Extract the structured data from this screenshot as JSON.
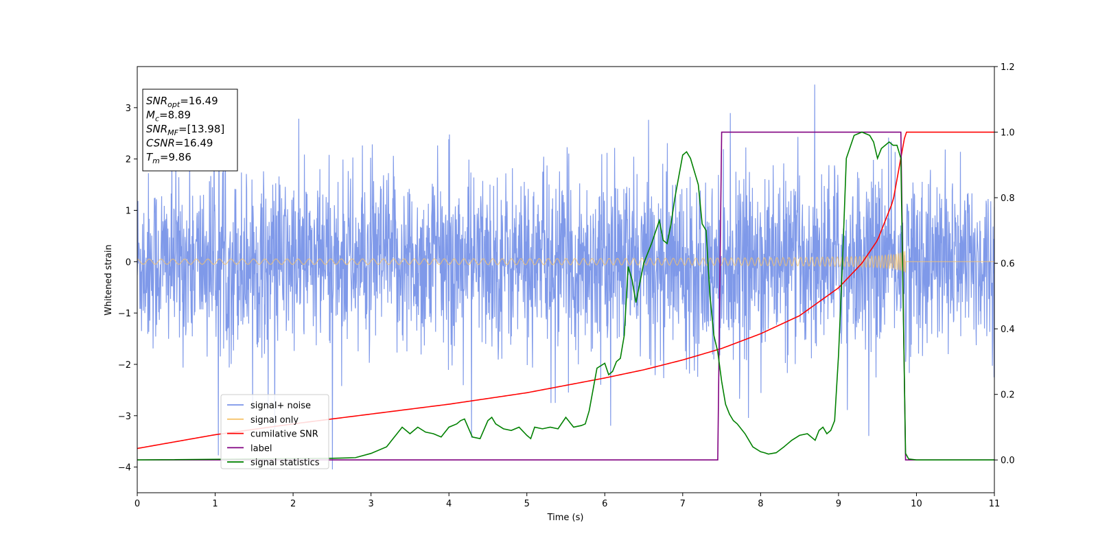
{
  "chart_data": {
    "type": "line",
    "title": "",
    "xlabel": "Time (s)",
    "ylabel": "Whitened strain",
    "xlim": [
      0,
      11
    ],
    "ylim": [
      -4.5,
      3.8
    ],
    "y2lim": [
      -0.1,
      1.2
    ],
    "x_ticks": [
      "0",
      "1",
      "2",
      "3",
      "4",
      "5",
      "6",
      "7",
      "8",
      "9",
      "10",
      "11"
    ],
    "y_ticks": [
      "3",
      "2",
      "1",
      "0",
      "−1",
      "−2",
      "−3",
      "−4"
    ],
    "y2_ticks": [
      "1.2",
      "1.0",
      "0.8",
      "0.6",
      "0.4",
      "0.2",
      "0.0"
    ],
    "legend_position": "lower-left",
    "annotation_lines": [
      {
        "main": "SNR",
        "sub": "opt",
        "rest": "=16.49"
      },
      {
        "main": "M",
        "sub": "c",
        "rest": "=8.89"
      },
      {
        "main": "SNR",
        "sub": "MF",
        "rest": "=[13.98]"
      },
      {
        "main": "CSNR",
        "sub": "",
        "rest": "=16.49"
      },
      {
        "main": "T",
        "sub": "m",
        "rest": "=9.86"
      }
    ],
    "series": [
      {
        "name": "signal+ noise",
        "color": "#7893e8",
        "axis": "left",
        "description_stats": {
          "x_range": [
            0,
            11
          ],
          "approx_min": -4.2,
          "approx_max": 3.45,
          "typical_amplitude": 1.6
        }
      },
      {
        "name": "signal only",
        "color": "#f7c36a",
        "axis": "left",
        "chirp": {
          "start_x": 0,
          "merger_x": 9.86,
          "start_amplitude": 0.05,
          "peak_amplitude": 0.95,
          "post_merger_value": 0
        }
      },
      {
        "name": "cumilative SNR",
        "color": "#ff0000",
        "axis": "right",
        "x": [
          0,
          1,
          2,
          3,
          4,
          5,
          6,
          6.5,
          7,
          7.5,
          8,
          8.5,
          9,
          9.3,
          9.5,
          9.7,
          9.86,
          10,
          11
        ],
        "y": [
          0.035,
          0.077,
          0.11,
          0.14,
          0.17,
          0.205,
          0.25,
          0.275,
          0.305,
          0.34,
          0.385,
          0.44,
          0.525,
          0.6,
          0.67,
          0.79,
          1.0,
          1.0,
          1.0
        ]
      },
      {
        "name": "label",
        "color": "#800080",
        "axis": "right",
        "x": [
          0,
          7.45,
          7.5,
          9.8,
          9.86,
          11
        ],
        "y": [
          0,
          0,
          1,
          1,
          0,
          0
        ]
      },
      {
        "name": "signal statistics",
        "color": "#008000",
        "axis": "right",
        "x": [
          0,
          2.5,
          2.8,
          3.0,
          3.2,
          3.3,
          3.4,
          3.5,
          3.6,
          3.7,
          3.8,
          3.9,
          4.0,
          4.1,
          4.15,
          4.2,
          4.3,
          4.4,
          4.5,
          4.55,
          4.6,
          4.7,
          4.8,
          4.9,
          5.0,
          5.05,
          5.1,
          5.2,
          5.3,
          5.4,
          5.5,
          5.6,
          5.7,
          5.75,
          5.8,
          5.9,
          6.0,
          6.05,
          6.1,
          6.15,
          6.2,
          6.25,
          6.3,
          6.35,
          6.4,
          6.5,
          6.6,
          6.7,
          6.75,
          6.8,
          6.85,
          6.9,
          7.0,
          7.05,
          7.1,
          7.2,
          7.25,
          7.3,
          7.35,
          7.4,
          7.45,
          7.5,
          7.55,
          7.6,
          7.65,
          7.7,
          7.8,
          7.9,
          8.0,
          8.05,
          8.1,
          8.2,
          8.3,
          8.4,
          8.5,
          8.6,
          8.7,
          8.75,
          8.8,
          8.85,
          8.9,
          8.95,
          9.0,
          9.05,
          9.1,
          9.2,
          9.3,
          9.4,
          9.45,
          9.5,
          9.55,
          9.6,
          9.65,
          9.7,
          9.75,
          9.8,
          9.86,
          9.9,
          10.0,
          11.0
        ],
        "y": [
          0.0,
          0.005,
          0.007,
          0.02,
          0.04,
          0.07,
          0.1,
          0.08,
          0.1,
          0.085,
          0.08,
          0.07,
          0.1,
          0.11,
          0.12,
          0.125,
          0.07,
          0.065,
          0.12,
          0.13,
          0.11,
          0.095,
          0.09,
          0.1,
          0.075,
          0.065,
          0.1,
          0.095,
          0.1,
          0.095,
          0.13,
          0.1,
          0.105,
          0.11,
          0.15,
          0.28,
          0.295,
          0.26,
          0.27,
          0.3,
          0.31,
          0.38,
          0.59,
          0.55,
          0.48,
          0.6,
          0.66,
          0.73,
          0.67,
          0.66,
          0.72,
          0.8,
          0.93,
          0.94,
          0.92,
          0.84,
          0.72,
          0.7,
          0.5,
          0.38,
          0.33,
          0.24,
          0.17,
          0.14,
          0.12,
          0.11,
          0.08,
          0.04,
          0.025,
          0.022,
          0.018,
          0.022,
          0.04,
          0.06,
          0.075,
          0.08,
          0.06,
          0.09,
          0.1,
          0.08,
          0.09,
          0.12,
          0.32,
          0.6,
          0.92,
          0.99,
          1.0,
          0.99,
          0.97,
          0.92,
          0.95,
          0.96,
          0.97,
          0.96,
          0.96,
          0.92,
          0.02,
          0.003,
          0.0,
          0.0
        ]
      }
    ]
  }
}
